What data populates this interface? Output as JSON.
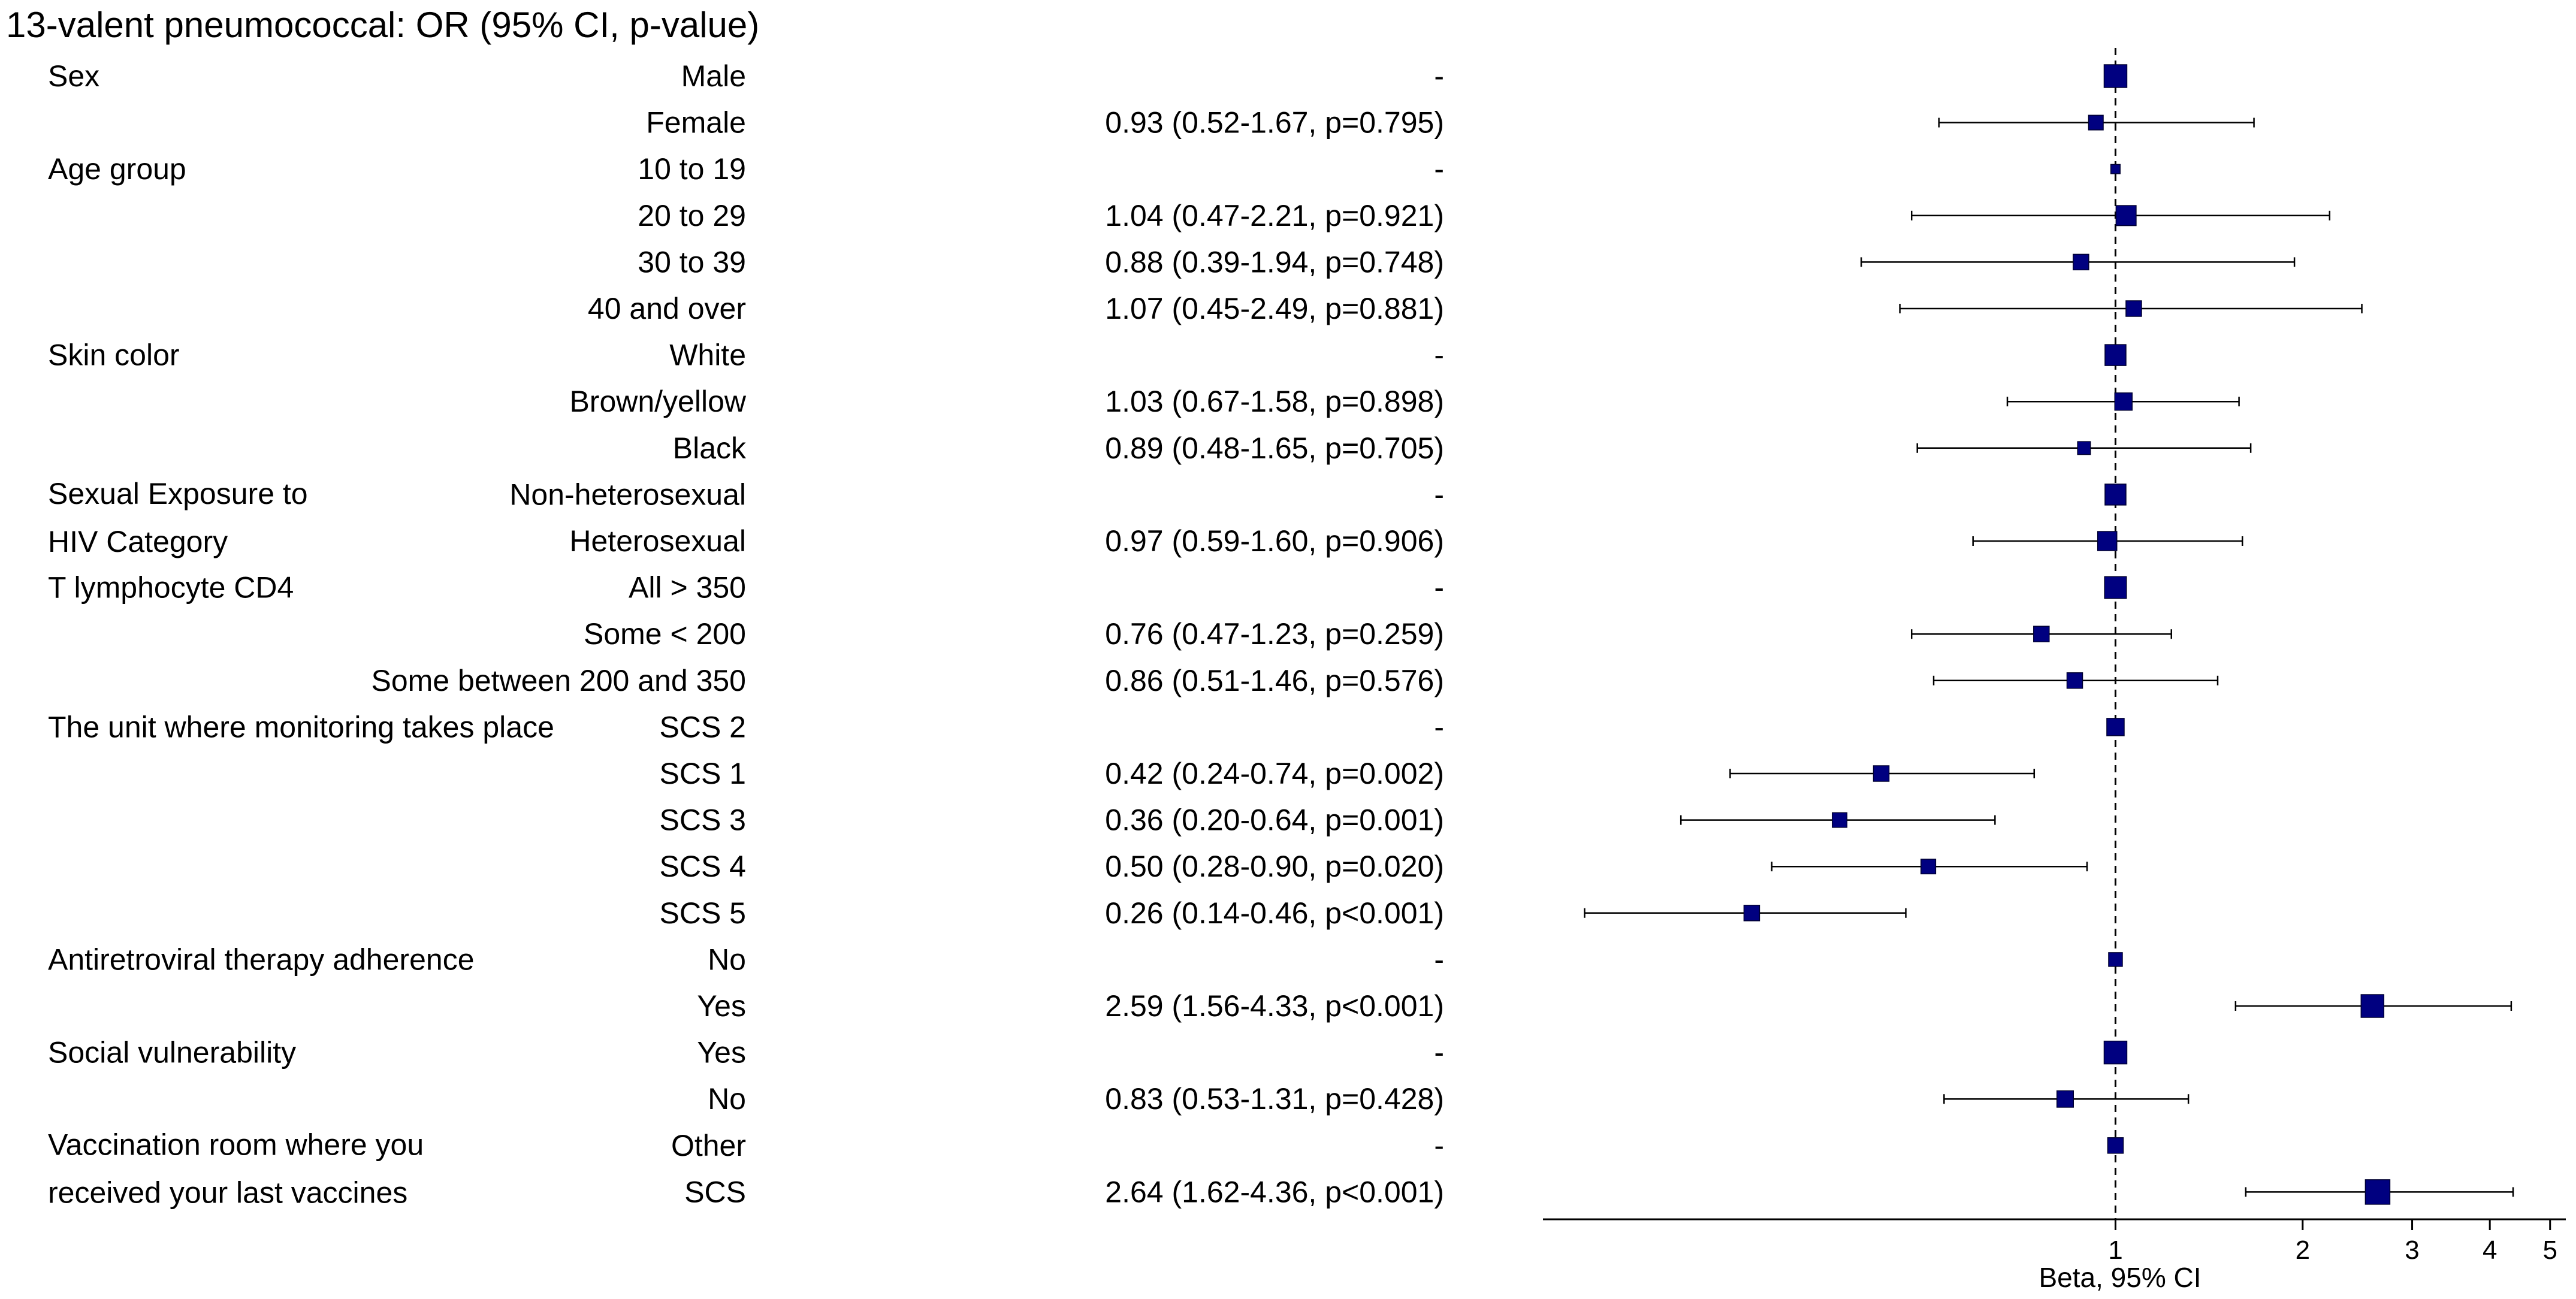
{
  "chart_data": {
    "type": "forest",
    "title": "13-valent pneumococcal: OR (95% CI, p-value)",
    "xlabel": "Beta, 95% CI",
    "x_scale": "log",
    "x_ticks": [
      1,
      2,
      3,
      4,
      5
    ],
    "xlim": [
      0.12,
      5.3
    ],
    "reference_line": 1,
    "groups": [
      {
        "label": [
          "Sex"
        ],
        "rows": [
          {
            "level": "Male",
            "est": 1,
            "lo": null,
            "hi": null,
            "text": "-",
            "box": 1.0
          },
          {
            "level": "Female",
            "est": 0.93,
            "lo": 0.52,
            "hi": 1.67,
            "text": "0.93 (0.52-1.67, p=0.795)",
            "box": 0.55
          }
        ]
      },
      {
        "label": [
          "Age group"
        ],
        "rows": [
          {
            "level": "10 to 19",
            "est": 1,
            "lo": null,
            "hi": null,
            "text": "-",
            "box": 0.25
          },
          {
            "level": "20 to 29",
            "est": 1.04,
            "lo": 0.47,
            "hi": 2.21,
            "text": "1.04 (0.47-2.21, p=0.921)",
            "box": 0.85
          },
          {
            "level": "30 to 39",
            "est": 0.88,
            "lo": 0.39,
            "hi": 1.94,
            "text": "0.88 (0.39-1.94, p=0.748)",
            "box": 0.6
          },
          {
            "level": "40 and over",
            "est": 1.07,
            "lo": 0.45,
            "hi": 2.49,
            "text": "1.07 (0.45-2.49, p=0.881)",
            "box": 0.6
          }
        ]
      },
      {
        "label": [
          "Skin color"
        ],
        "rows": [
          {
            "level": "White",
            "est": 1,
            "lo": null,
            "hi": null,
            "text": "-",
            "box": 0.9
          },
          {
            "level": "Brown/yellow",
            "est": 1.03,
            "lo": 0.67,
            "hi": 1.58,
            "text": "1.03 (0.67-1.58, p=0.898)",
            "box": 0.7
          },
          {
            "level": "Black",
            "est": 0.89,
            "lo": 0.48,
            "hi": 1.65,
            "text": "0.89 (0.48-1.65, p=0.705)",
            "box": 0.45
          }
        ]
      },
      {
        "label": [
          "Sexual Exposure to",
          " HIV Category"
        ],
        "rows": [
          {
            "level": "Non-heterosexual",
            "est": 1,
            "lo": null,
            "hi": null,
            "text": "-",
            "box": 0.9
          },
          {
            "level": "Heterosexual",
            "est": 0.97,
            "lo": 0.59,
            "hi": 1.6,
            "text": "0.97 (0.59-1.60, p=0.906)",
            "box": 0.8
          }
        ]
      },
      {
        "label": [
          "T lymphocyte CD4"
        ],
        "rows": [
          {
            "level": "All > 350",
            "est": 1,
            "lo": null,
            "hi": null,
            "text": "-",
            "box": 0.95
          },
          {
            "level": "Some < 200",
            "est": 0.76,
            "lo": 0.47,
            "hi": 1.23,
            "text": "0.76 (0.47-1.23, p=0.259)",
            "box": 0.6
          },
          {
            "level": "Some between 200 and 350",
            "est": 0.86,
            "lo": 0.51,
            "hi": 1.46,
            "text": "0.86 (0.51-1.46, p=0.576)",
            "box": 0.6
          }
        ]
      },
      {
        "label": [
          "The unit where monitoring takes place"
        ],
        "rows": [
          {
            "level": "SCS 2",
            "est": 1,
            "lo": null,
            "hi": null,
            "text": "-",
            "box": 0.7
          },
          {
            "level": "SCS 1",
            "est": 0.42,
            "lo": 0.24,
            "hi": 0.74,
            "text": "0.42 (0.24-0.74, p=0.002)",
            "box": 0.6
          },
          {
            "level": "SCS 3",
            "est": 0.36,
            "lo": 0.2,
            "hi": 0.64,
            "text": "0.36 (0.20-0.64, p=0.001)",
            "box": 0.55
          },
          {
            "level": "SCS 4",
            "est": 0.5,
            "lo": 0.28,
            "hi": 0.9,
            "text": "0.50 (0.28-0.90, p=0.020)",
            "box": 0.55
          },
          {
            "level": "SCS 5",
            "est": 0.26,
            "lo": 0.14,
            "hi": 0.46,
            "text": "0.26 (0.14-0.46, p<0.001)",
            "box": 0.6
          }
        ]
      },
      {
        "label": [
          "Antiretroviral therapy adherence"
        ],
        "rows": [
          {
            "level": "No",
            "est": 1,
            "lo": null,
            "hi": null,
            "text": "-",
            "box": 0.5
          },
          {
            "level": "Yes",
            "est": 2.59,
            "lo": 1.56,
            "hi": 4.33,
            "text": "2.59 (1.56-4.33, p<0.001)",
            "box": 1.0
          }
        ]
      },
      {
        "label": [
          "Social vulnerability"
        ],
        "rows": [
          {
            "level": "Yes",
            "est": 1,
            "lo": null,
            "hi": null,
            "text": "-",
            "box": 1.0
          },
          {
            "level": "No",
            "est": 0.83,
            "lo": 0.53,
            "hi": 1.31,
            "text": "0.83 (0.53-1.31, p=0.428)",
            "box": 0.65
          }
        ]
      },
      {
        "label": [
          "Vaccination room where you",
          " received your last vaccines"
        ],
        "rows": [
          {
            "level": "Other",
            "est": 1,
            "lo": null,
            "hi": null,
            "text": "-",
            "box": 0.6
          },
          {
            "level": "SCS",
            "est": 2.64,
            "lo": 1.62,
            "hi": 4.36,
            "text": "2.64 (1.62-4.36, p<0.001)",
            "box": 1.1
          }
        ]
      }
    ],
    "colors": {
      "marker": "#000080",
      "line": "#000000",
      "text": "#000000"
    }
  }
}
